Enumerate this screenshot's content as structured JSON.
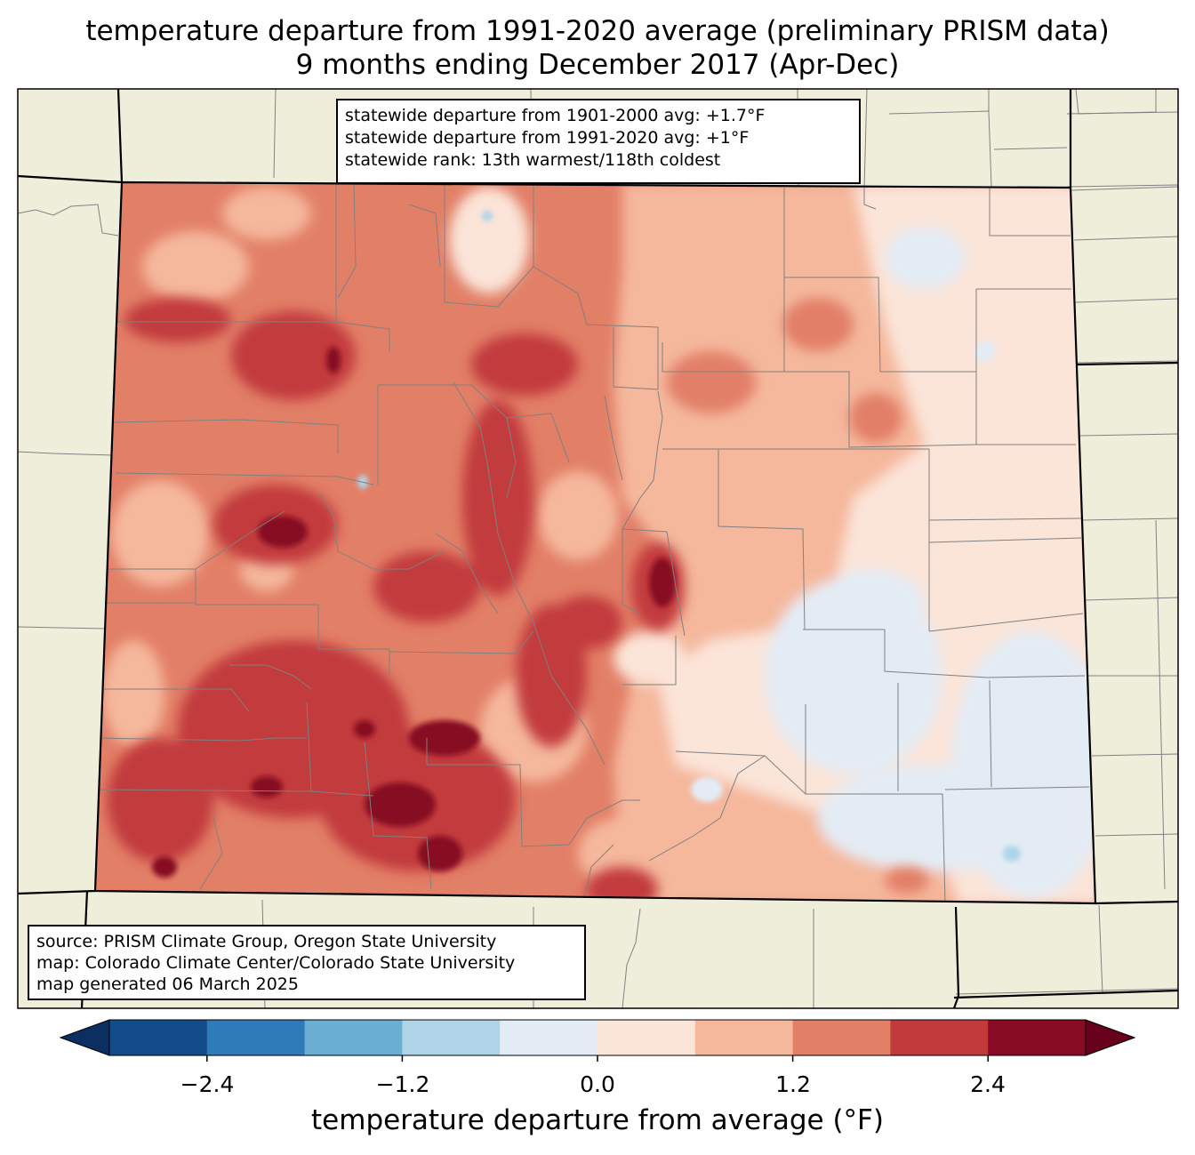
{
  "title_line1": "temperature departure from 1991-2020 average (preliminary PRISM data)",
  "title_line2": "9 months ending December 2017 (Apr-Dec)",
  "stats_box": [
    "statewide departure from 1901-2000 avg: +1.7°F",
    "statewide departure from 1991-2020 avg: +1°F",
    "statewide rank: 13th warmest/118th coldest"
  ],
  "credits_box": [
    "source: PRISM Climate Group, Oregon State University",
    "map: Colorado Climate Center/Colorado State University",
    "map generated 06 March 2025"
  ],
  "colorbar": {
    "label": "temperature departure from average (°F)",
    "ticks": [
      "−2.4",
      "−1.2",
      "0.0",
      "1.2",
      "2.4"
    ],
    "bins": [
      {
        "from": -3.0,
        "to": -2.4,
        "color": "#144b8a"
      },
      {
        "from": -2.4,
        "to": -1.8,
        "color": "#2f7ab8"
      },
      {
        "from": -1.8,
        "to": -1.2,
        "color": "#6aaed3"
      },
      {
        "from": -1.2,
        "to": -0.6,
        "color": "#afd4e7"
      },
      {
        "from": -0.6,
        "to": 0.0,
        "color": "#e3ecf5"
      },
      {
        "from": 0.0,
        "to": 0.6,
        "color": "#fbe4d8"
      },
      {
        "from": 0.6,
        "to": 1.2,
        "color": "#f5b89c"
      },
      {
        "from": 1.2,
        "to": 1.8,
        "color": "#e27f67"
      },
      {
        "from": 1.8,
        "to": 2.4,
        "color": "#c23a3c"
      },
      {
        "from": 2.4,
        "to": 3.0,
        "color": "#870c24"
      }
    ],
    "under_color": "#0b2f61",
    "over_color": "#67001c"
  },
  "colors": {
    "land_background": "#efeedb",
    "county_lines": "#808080",
    "state_lines": "#000000"
  }
}
